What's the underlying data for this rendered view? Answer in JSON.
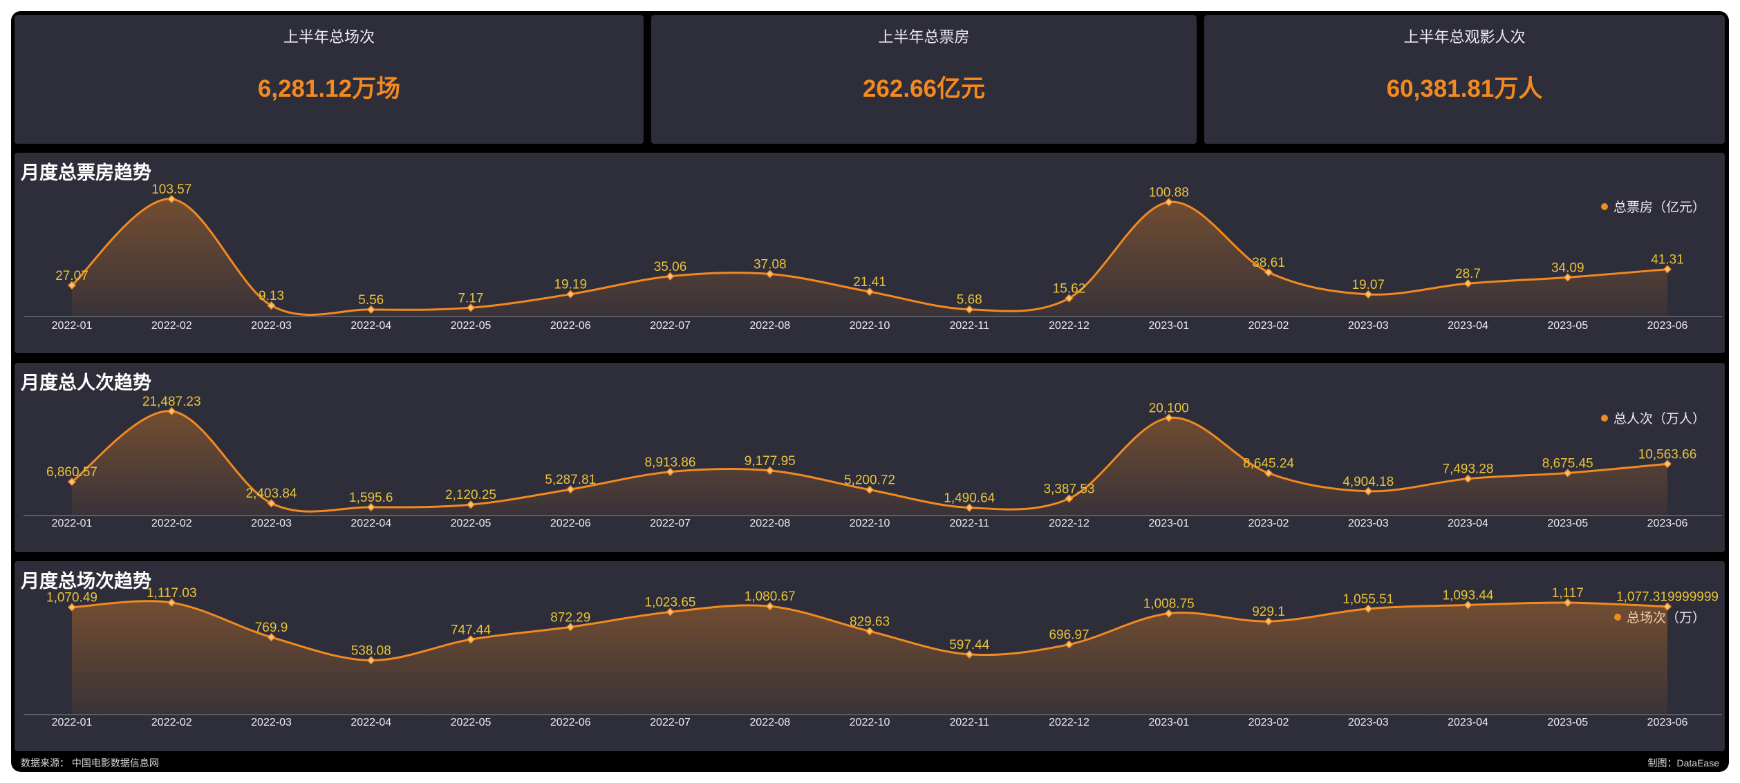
{
  "kpis": [
    {
      "title": "上半年总场次",
      "value": "6,281.12万场"
    },
    {
      "title": "上半年总票房",
      "value": "262.66亿元"
    },
    {
      "title": "上半年总观影人次",
      "value": "60,381.81万人"
    }
  ],
  "colors": {
    "line": "#f28a1f",
    "label": "#e8c43a",
    "background": "#2e2d3a",
    "axis_text": "#ececf1"
  },
  "chart_data": [
    {
      "type": "area",
      "title": "月度总票房趋势",
      "categories": [
        "2022-01",
        "2022-02",
        "2022-03",
        "2022-04",
        "2022-05",
        "2022-06",
        "2022-07",
        "2022-08",
        "2022-10",
        "2022-11",
        "2022-12",
        "2023-01",
        "2023-02",
        "2023-03",
        "2023-04",
        "2023-05",
        "2023-06"
      ],
      "series": [
        {
          "name": "总票房（亿元）",
          "values": [
            27.07,
            103.57,
            9.13,
            5.56,
            7.17,
            19.19,
            35.06,
            37.08,
            21.41,
            5.68,
            15.62,
            100.88,
            38.61,
            19.07,
            28.7,
            34.09,
            41.31
          ]
        }
      ],
      "data_labels": [
        "27.07",
        "103.57",
        "9.13",
        "5.56",
        "7.17",
        "19.19",
        "35.06",
        "37.08",
        "21.41",
        "5.68",
        "15.62",
        "100.88",
        "38.61",
        "19.07",
        "28.7",
        "34.09",
        "41.31"
      ],
      "legend_position": "top-right",
      "smooth": true,
      "grid": false
    },
    {
      "type": "area",
      "title": "月度总人次趋势",
      "categories": [
        "2022-01",
        "2022-02",
        "2022-03",
        "2022-04",
        "2022-05",
        "2022-06",
        "2022-07",
        "2022-08",
        "2022-10",
        "2022-11",
        "2022-12",
        "2023-01",
        "2023-02",
        "2023-03",
        "2023-04",
        "2023-05",
        "2023-06"
      ],
      "series": [
        {
          "name": "总人次（万人）",
          "values": [
            6860.57,
            21487.23,
            2403.84,
            1595.6,
            2120.25,
            5287.81,
            8913.86,
            9177.95,
            5200.72,
            1490.64,
            3387.53,
            20100,
            8645.24,
            4904.18,
            7493.28,
            8675.45,
            10563.66
          ]
        }
      ],
      "data_labels": [
        "6,860.57",
        "21,487.23",
        "2,403.84",
        "1,595.6",
        "2,120.25",
        "5,287.81",
        "8,913.86",
        "9,177.95",
        "5,200.72",
        "1,490.64",
        "3,387.53",
        "20,100",
        "8,645.24",
        "4,904.18",
        "7,493.28",
        "8,675.45",
        "10,563.66"
      ],
      "legend_position": "top-right",
      "smooth": true,
      "grid": false
    },
    {
      "type": "area",
      "title": "月度总场次趋势",
      "categories": [
        "2022-01",
        "2022-02",
        "2022-03",
        "2022-04",
        "2022-05",
        "2022-06",
        "2022-07",
        "2022-08",
        "2022-10",
        "2022-11",
        "2022-12",
        "2023-01",
        "2023-02",
        "2023-03",
        "2023-04",
        "2023-05",
        "2023-06"
      ],
      "series": [
        {
          "name": "总场次（万）",
          "values": [
            1070.49,
            1117.03,
            769.9,
            538.08,
            747.44,
            872.29,
            1023.65,
            1080.67,
            829.63,
            597.44,
            696.97,
            1008.75,
            929.1,
            1055.51,
            1093.44,
            1117,
            1077.319999999
          ]
        }
      ],
      "data_labels": [
        "1,070.49",
        "1,117.03",
        "769.9",
        "538.08",
        "747.44",
        "872.29",
        "1,023.65",
        "1,080.67",
        "829.63",
        "597.44",
        "696.97",
        "1,008.75",
        "929.1",
        "1,055.51",
        "1,093.44",
        "1,117",
        "1,077.319999999"
      ],
      "legend_position": "top-right",
      "smooth": true,
      "grid": false
    }
  ],
  "footer": {
    "source": "数据来源：  中国电影数据信息网",
    "credit": "制图：DataEase"
  }
}
